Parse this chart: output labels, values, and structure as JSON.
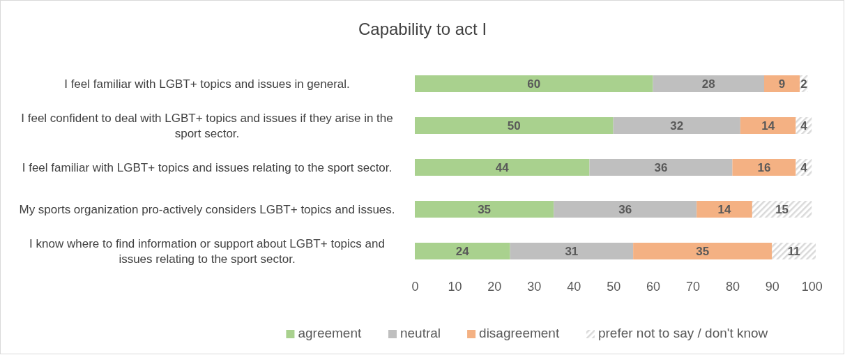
{
  "chart_data": {
    "type": "bar",
    "orientation": "horizontal",
    "stacked": true,
    "title": "Capability to act I",
    "categories": [
      "I feel familiar with LGBT+ topics and issues in general.",
      "I feel confident to deal with LGBT+ topics and issues if they arise in the sport sector.",
      "I feel familiar with LGBT+ topics and issues relating to the sport sector.",
      "My sports organization pro-actively considers LGBT+ topics and issues.",
      "I know where to find information or support about LGBT+ topics and issues relating to the sport sector."
    ],
    "series": [
      {
        "name": "agreement",
        "color": "#a9d18e",
        "values": [
          60,
          50,
          44,
          35,
          24
        ]
      },
      {
        "name": "neutral",
        "color": "#bfbfbf",
        "values": [
          28,
          32,
          36,
          36,
          31
        ]
      },
      {
        "name": "disagreement",
        "color": "#f4b183",
        "values": [
          9,
          14,
          16,
          14,
          35
        ]
      },
      {
        "name": "prefer not to say / don't know",
        "color": "#d9d9d9",
        "values": [
          2,
          4,
          4,
          15,
          11
        ]
      }
    ],
    "xlim": [
      0,
      101
    ],
    "xticks": [
      0,
      10,
      20,
      30,
      40,
      50,
      60,
      70,
      80,
      90,
      100
    ],
    "data_labels": true,
    "legend": "bottom",
    "grid": false
  }
}
